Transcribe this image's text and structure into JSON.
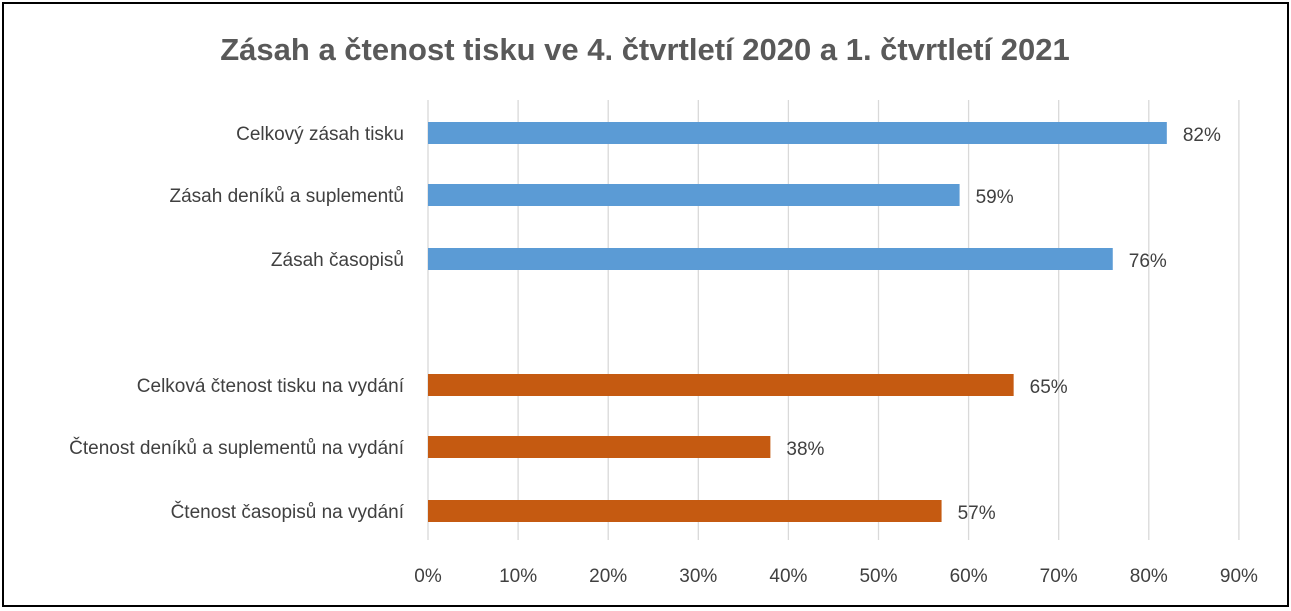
{
  "chart_data": {
    "type": "bar",
    "orientation": "horizontal",
    "title": "Zásah a čtenost tisku ve 4. čtvrtletí 2020 a 1. čtvrtletí 2021",
    "xlabel": "",
    "ylabel": "",
    "xlim": [
      0,
      0.9
    ],
    "x_ticks": [
      "0%",
      "10%",
      "20%",
      "30%",
      "40%",
      "50%",
      "60%",
      "70%",
      "80%",
      "90%"
    ],
    "grid": "vertical",
    "legend": "none",
    "colors": {
      "zasah": "#5b9bd5",
      "ctenost": "#c55a11",
      "grid": "#d9d9d9"
    },
    "bars": [
      {
        "label": "Celkový zásah tisku",
        "value": 0.82,
        "data_label": "82%",
        "group": "zasah"
      },
      {
        "label": "Zásah deníků a suplementů",
        "value": 0.59,
        "data_label": "59%",
        "group": "zasah"
      },
      {
        "label": "Zásah časopisů",
        "value": 0.76,
        "data_label": "76%",
        "group": "zasah"
      },
      {
        "label": "Celková čtenost tisku na vydání",
        "value": 0.65,
        "data_label": "65%",
        "group": "ctenost"
      },
      {
        "label": "Čtenost deníků a suplementů na vydání",
        "value": 0.38,
        "data_label": "38%",
        "group": "ctenost"
      },
      {
        "label": "Čtenost časopisů na vydání",
        "value": 0.57,
        "data_label": "57%",
        "group": "ctenost"
      }
    ]
  }
}
